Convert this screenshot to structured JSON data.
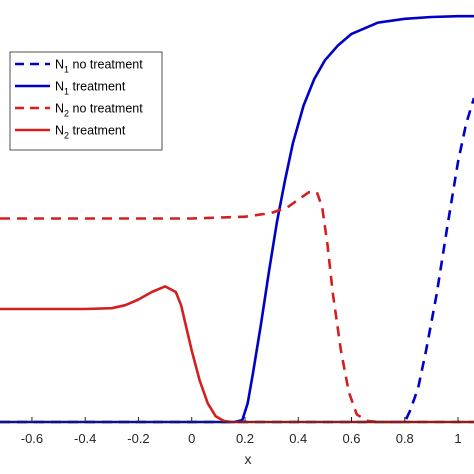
{
  "chart_data": {
    "type": "line",
    "title": "",
    "xlabel": "x",
    "ylabel": "",
    "xlim": [
      -0.72,
      1.06
    ],
    "ylim": [
      0,
      1.12
    ],
    "x_ticks": [
      "-0.6",
      "-0.4",
      "-0.2",
      "0",
      "0.2",
      "0.4",
      "0.6",
      "0.8",
      "1"
    ],
    "grid": false,
    "legend_position": "top-left",
    "series": [
      {
        "name": "N",
        "subscript": "1",
        "suffix": " no treatment",
        "color": "#0000c8",
        "dash": "dashed",
        "x": [
          -0.72,
          0.0,
          0.4,
          0.78,
          0.8,
          0.82,
          0.85,
          0.88,
          0.92,
          0.96,
          1.0,
          1.03,
          1.06
        ],
        "y": [
          0.0,
          0.0,
          0.0,
          0.0,
          0.0,
          0.03,
          0.09,
          0.19,
          0.34,
          0.52,
          0.69,
          0.79,
          0.86
        ]
      },
      {
        "name": "N",
        "subscript": "1",
        "suffix": " treatment",
        "color": "#0000c8",
        "dash": "solid",
        "x": [
          -0.72,
          0.0,
          0.16,
          0.19,
          0.21,
          0.23,
          0.26,
          0.29,
          0.32,
          0.35,
          0.38,
          0.42,
          0.46,
          0.5,
          0.55,
          0.6,
          0.7,
          0.8,
          0.9,
          1.0,
          1.06
        ],
        "y": [
          0.0,
          0.0,
          0.0,
          0.005,
          0.05,
          0.13,
          0.26,
          0.4,
          0.53,
          0.64,
          0.74,
          0.84,
          0.91,
          0.96,
          1.0,
          1.03,
          1.06,
          1.07,
          1.075,
          1.077,
          1.077
        ]
      },
      {
        "name": "N",
        "subscript": "2",
        "suffix": " no treatment",
        "color": "#d22020",
        "dash": "dashed",
        "x": [
          -0.72,
          -0.4,
          -0.2,
          0.0,
          0.2,
          0.3,
          0.36,
          0.4,
          0.44,
          0.47,
          0.49,
          0.51,
          0.53,
          0.56,
          0.59,
          0.62,
          0.66,
          0.7,
          0.75,
          0.8,
          1.06
        ],
        "y": [
          0.54,
          0.54,
          0.54,
          0.54,
          0.545,
          0.555,
          0.57,
          0.59,
          0.61,
          0.61,
          0.57,
          0.47,
          0.34,
          0.19,
          0.08,
          0.02,
          0.003,
          0.0,
          0.0,
          0.0,
          0.0
        ]
      },
      {
        "name": "N",
        "subscript": "2",
        "suffix": " treatment",
        "color": "#d22020",
        "dash": "solid",
        "x": [
          -0.72,
          -0.4,
          -0.3,
          -0.25,
          -0.2,
          -0.15,
          -0.1,
          -0.06,
          -0.04,
          -0.02,
          0.0,
          0.03,
          0.06,
          0.09,
          0.12,
          0.15,
          0.2,
          0.4,
          0.8,
          1.06
        ],
        "y": [
          0.3,
          0.3,
          0.302,
          0.31,
          0.325,
          0.345,
          0.36,
          0.345,
          0.31,
          0.25,
          0.19,
          0.11,
          0.05,
          0.015,
          0.003,
          0.0,
          0.0,
          0.0,
          0.0,
          0.0
        ]
      }
    ]
  }
}
